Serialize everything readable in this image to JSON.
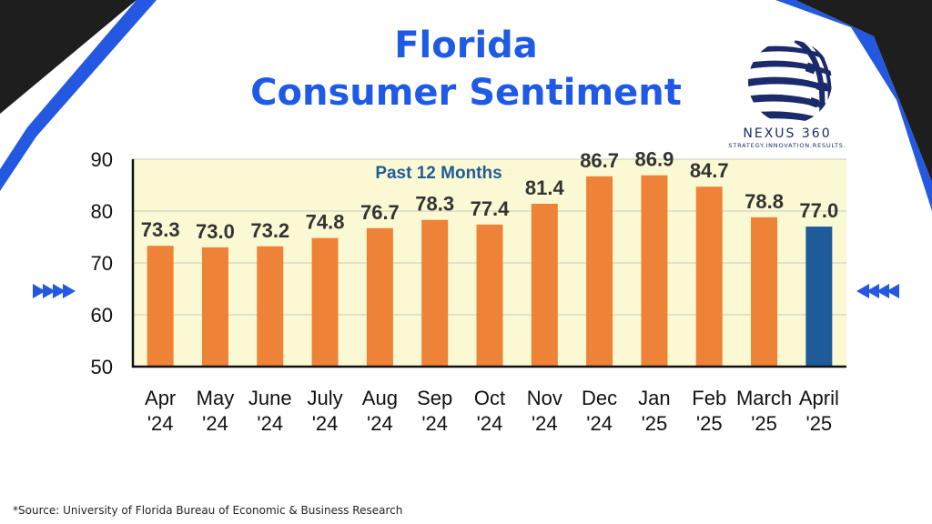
{
  "colors": {
    "title": "#1f5ae6",
    "bar": "#ee8236",
    "bar_highlight": "#1f5b98",
    "plot_background": "#fbf9d3",
    "annotation": "#1f5b98",
    "decor_dark": "#1e1e1e",
    "decor_blue": "#2458e0"
  },
  "title_lines": [
    "Florida",
    "Consumer Sentiment"
  ],
  "logo": {
    "name": "NEXUS 360",
    "tagline": "STRATEGY.INNOVATION.RESULTS.",
    "icon": "globe-icon"
  },
  "icons": {
    "left_arrows": "chevrons-right-icon",
    "right_arrows": "chevrons-left-icon"
  },
  "chart_data": {
    "type": "bar",
    "title": "Florida Consumer Sentiment",
    "annotation": "Past 12 Months",
    "categories": [
      [
        "Apr",
        "'24"
      ],
      [
        "May",
        "'24"
      ],
      [
        "June",
        "'24"
      ],
      [
        "July",
        "'24"
      ],
      [
        "Aug",
        "'24"
      ],
      [
        "Sep",
        "'24"
      ],
      [
        "Oct",
        "'24"
      ],
      [
        "Nov",
        "'24"
      ],
      [
        "Dec",
        "'24"
      ],
      [
        "Jan",
        "'25"
      ],
      [
        "Feb",
        "'25"
      ],
      [
        "March",
        "'25"
      ],
      [
        "April",
        "'25"
      ]
    ],
    "values": [
      73.3,
      73.0,
      73.2,
      74.8,
      76.7,
      78.3,
      77.4,
      81.4,
      86.7,
      86.9,
      84.7,
      78.8,
      77.0
    ],
    "value_labels": [
      "73.3",
      "73.0",
      "73.2",
      "74.8",
      "76.7",
      "78.3",
      "77.4",
      "81.4",
      "86.7",
      "86.9",
      "84.7",
      "78.8",
      "77.0"
    ],
    "highlight_index": 12,
    "ylim": [
      50,
      90
    ],
    "yticks": [
      50,
      60,
      70,
      80,
      90
    ],
    "ytick_labels": [
      "50",
      "60",
      "70",
      "80",
      "90"
    ],
    "grid": true,
    "xlabel": "",
    "ylabel": ""
  },
  "source": "*Source: University of Florida Bureau of Economic & Business Research"
}
